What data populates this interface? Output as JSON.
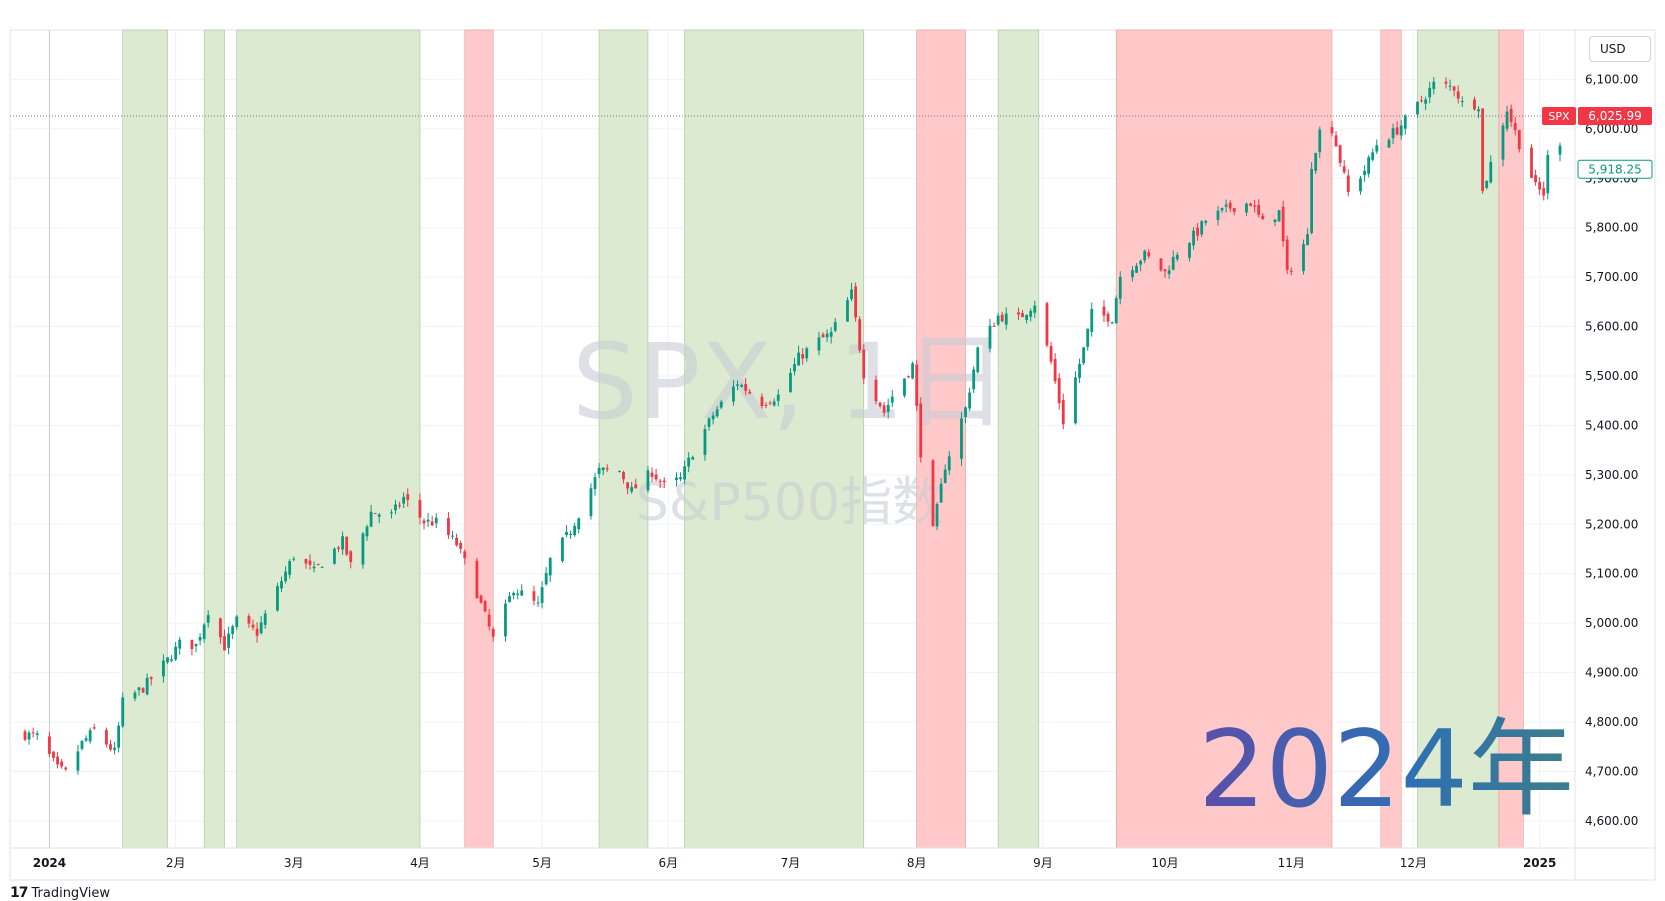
{
  "currency_button": "USD",
  "branding": {
    "logo_mark": "17",
    "name": "TradingView"
  },
  "watermark": {
    "symbol_line": "SPX, 1日",
    "name_line": "S&P500指数"
  },
  "year_overlay": {
    "text": "2024年",
    "colors": [
      "#5b4ea8",
      "#2f6fb5",
      "#3c7e8a"
    ]
  },
  "colors": {
    "up": "#089981",
    "down": "#f23645",
    "green_band": "#dbead0",
    "red_band": "#ffc9c9",
    "current_label": "#f23645",
    "grid": "#f0f3fa"
  },
  "price_labels": {
    "symbol": "SPX",
    "current": {
      "value": 6025.99,
      "text": "6,025.99"
    },
    "secondary": {
      "value": 5918.25,
      "text": "5,918.25"
    }
  },
  "chart_data": {
    "type": "candlestick",
    "title": "SPX, 1日",
    "subtitle": "S&P500指数",
    "y_axis": {
      "ylim": [
        4545,
        6200
      ],
      "ticks": [
        4600,
        4700,
        4800,
        4900,
        5000,
        5100,
        5200,
        5300,
        5400,
        5500,
        5600,
        5700,
        5800,
        5900,
        6000,
        6100
      ],
      "tick_labels": [
        "4,600.00",
        "4,700.00",
        "4,800.00",
        "4,900.00",
        "5,000.00",
        "5,100.00",
        "5,200.00",
        "5,300.00",
        "5,400.00",
        "5,500.00",
        "5,600.00",
        "5,700.00",
        "5,800.00",
        "5,900.00",
        "6,000.00",
        "6,100.00"
      ]
    },
    "x_axis": {
      "range": [
        "2023-12-26",
        "2025-01-06"
      ],
      "ticks": [
        {
          "date": "2024-01-01",
          "label": "2024"
        },
        {
          "date": "2024-02-01",
          "label": "2月"
        },
        {
          "date": "2024-03-01",
          "label": "3月"
        },
        {
          "date": "2024-04-01",
          "label": "4月"
        },
        {
          "date": "2024-05-01",
          "label": "5月"
        },
        {
          "date": "2024-06-01",
          "label": "6月"
        },
        {
          "date": "2024-07-01",
          "label": "7月"
        },
        {
          "date": "2024-08-01",
          "label": "8月"
        },
        {
          "date": "2024-09-01",
          "label": "9月"
        },
        {
          "date": "2024-10-01",
          "label": "10月"
        },
        {
          "date": "2024-11-01",
          "label": "11月"
        },
        {
          "date": "2024-12-01",
          "label": "12月"
        },
        {
          "date": "2025-01-01",
          "label": "2025"
        }
      ]
    },
    "bands": [
      {
        "start": "2024-01-19",
        "end": "2024-01-30",
        "color": "green"
      },
      {
        "start": "2024-02-08",
        "end": "2024-02-13",
        "color": "green"
      },
      {
        "start": "2024-02-16",
        "end": "2024-04-01",
        "color": "green"
      },
      {
        "start": "2024-04-12",
        "end": "2024-04-19",
        "color": "red"
      },
      {
        "start": "2024-05-15",
        "end": "2024-05-27",
        "color": "green"
      },
      {
        "start": "2024-06-05",
        "end": "2024-07-19",
        "color": "green"
      },
      {
        "start": "2024-08-01",
        "end": "2024-08-13",
        "color": "red"
      },
      {
        "start": "2024-08-21",
        "end": "2024-08-31",
        "color": "green"
      },
      {
        "start": "2024-09-19",
        "end": "2024-11-11",
        "color": "red"
      },
      {
        "start": "2024-11-23",
        "end": "2024-11-28",
        "color": "red"
      },
      {
        "start": "2024-12-02",
        "end": "2024-12-22",
        "color": "green"
      },
      {
        "start": "2024-12-22",
        "end": "2024-12-28",
        "color": "red"
      }
    ],
    "series": [
      {
        "type": "close_path",
        "points": [
          [
            "2023-12-26",
            4775
          ],
          [
            "2023-12-29",
            4770
          ],
          [
            "2024-01-03",
            4705
          ],
          [
            "2024-01-05",
            4697
          ],
          [
            "2024-01-09",
            4757
          ],
          [
            "2024-01-12",
            4783
          ],
          [
            "2024-01-17",
            4739
          ],
          [
            "2024-01-19",
            4840
          ],
          [
            "2024-01-24",
            4869
          ],
          [
            "2024-01-30",
            4925
          ],
          [
            "2024-02-02",
            4958
          ],
          [
            "2024-02-06",
            4955
          ],
          [
            "2024-02-09",
            5026
          ],
          [
            "2024-02-13",
            4953
          ],
          [
            "2024-02-16",
            5005
          ],
          [
            "2024-02-21",
            4981
          ],
          [
            "2024-02-26",
            5069
          ],
          [
            "2024-03-01",
            5137
          ],
          [
            "2024-03-06",
            5104
          ],
          [
            "2024-03-08",
            5123
          ],
          [
            "2024-03-13",
            5165
          ],
          [
            "2024-03-15",
            5117
          ],
          [
            "2024-03-20",
            5224
          ],
          [
            "2024-03-25",
            5218
          ],
          [
            "2024-03-28",
            5254
          ],
          [
            "2024-04-02",
            5205
          ],
          [
            "2024-04-05",
            5204
          ],
          [
            "2024-04-10",
            5160
          ],
          [
            "2024-04-12",
            5123
          ],
          [
            "2024-04-15",
            5061
          ],
          [
            "2024-04-19",
            4967
          ],
          [
            "2024-04-24",
            5071
          ],
          [
            "2024-04-30",
            5035
          ],
          [
            "2024-05-03",
            5127
          ],
          [
            "2024-05-08",
            5187
          ],
          [
            "2024-05-10",
            5222
          ],
          [
            "2024-05-15",
            5308
          ],
          [
            "2024-05-20",
            5308
          ],
          [
            "2024-05-23",
            5267
          ],
          [
            "2024-05-28",
            5306
          ],
          [
            "2024-05-31",
            5277
          ],
          [
            "2024-06-04",
            5291
          ],
          [
            "2024-06-07",
            5346
          ],
          [
            "2024-06-12",
            5421
          ],
          [
            "2024-06-18",
            5487
          ],
          [
            "2024-06-24",
            5447
          ],
          [
            "2024-06-28",
            5460
          ],
          [
            "2024-07-03",
            5537
          ],
          [
            "2024-07-08",
            5572
          ],
          [
            "2024-07-11",
            5585
          ],
          [
            "2024-07-16",
            5667
          ],
          [
            "2024-07-19",
            5505
          ],
          [
            "2024-07-24",
            5427
          ],
          [
            "2024-07-26",
            5459
          ],
          [
            "2024-07-31",
            5522
          ],
          [
            "2024-08-02",
            5346
          ],
          [
            "2024-08-05",
            5186
          ],
          [
            "2024-08-08",
            5319
          ],
          [
            "2024-08-13",
            5434
          ],
          [
            "2024-08-16",
            5554
          ],
          [
            "2024-08-21",
            5621
          ],
          [
            "2024-08-26",
            5616
          ],
          [
            "2024-08-30",
            5648
          ],
          [
            "2024-09-03",
            5528
          ],
          [
            "2024-09-06",
            5408
          ],
          [
            "2024-09-11",
            5554
          ],
          [
            "2024-09-13",
            5626
          ],
          [
            "2024-09-18",
            5618
          ],
          [
            "2024-09-20",
            5703
          ],
          [
            "2024-09-26",
            5745
          ],
          [
            "2024-10-01",
            5709
          ],
          [
            "2024-10-04",
            5751
          ],
          [
            "2024-10-09",
            5792
          ],
          [
            "2024-10-11",
            5815
          ],
          [
            "2024-10-17",
            5841
          ],
          [
            "2024-10-22",
            5851
          ],
          [
            "2024-10-25",
            5808
          ],
          [
            "2024-10-29",
            5832
          ],
          [
            "2024-10-31",
            5705
          ],
          [
            "2024-11-05",
            5782
          ],
          [
            "2024-11-06",
            5929
          ],
          [
            "2024-11-08",
            5995
          ],
          [
            "2024-11-11",
            6001
          ],
          [
            "2024-11-15",
            5870
          ],
          [
            "2024-11-19",
            5917
          ],
          [
            "2024-11-22",
            5969
          ],
          [
            "2024-11-27",
            5998
          ],
          [
            "2024-12-02",
            6047
          ],
          [
            "2024-12-06",
            6090
          ],
          [
            "2024-12-11",
            6084
          ],
          [
            "2024-12-13",
            6051
          ],
          [
            "2024-12-17",
            6050
          ],
          [
            "2024-12-18",
            5872
          ],
          [
            "2024-12-20",
            5930
          ],
          [
            "2024-12-24",
            6040
          ],
          [
            "2024-12-27",
            5970
          ],
          [
            "2024-12-31",
            5882
          ],
          [
            "2025-01-02",
            5869
          ],
          [
            "2025-01-03",
            5942
          ],
          [
            "2025-01-06",
            5975
          ]
        ]
      }
    ]
  }
}
